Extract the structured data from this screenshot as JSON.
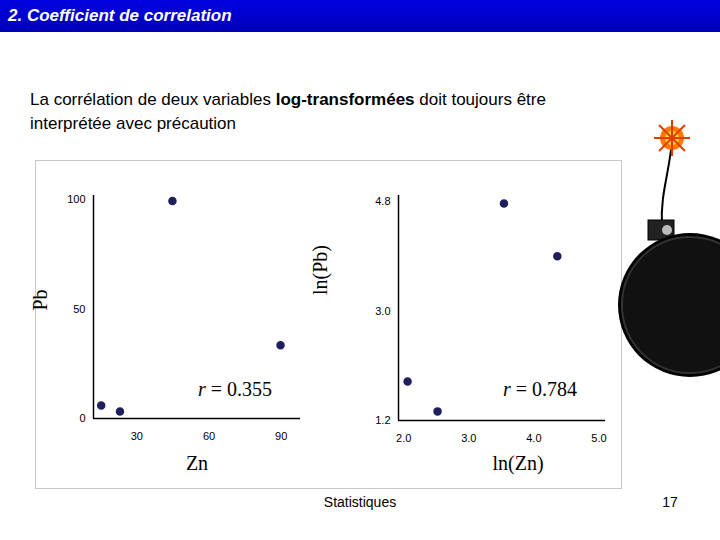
{
  "header": {
    "title": "2. Coefficient de correlation"
  },
  "intro": {
    "parts": [
      {
        "text": "La corrélation de deux variables ",
        "bold": false
      },
      {
        "text": "log-transformées",
        "bold": true
      },
      {
        "text": " doit toujours être interprétée avec précaution",
        "bold": false
      }
    ]
  },
  "chart_data": [
    {
      "type": "scatter",
      "x_label": "Zn",
      "y_label": "Pb",
      "x": [
        15.2,
        23,
        44.8,
        89.7
      ],
      "values": [
        6,
        3.2,
        99.5,
        33.5
      ],
      "xlim": [
        12,
        98
      ],
      "ylim": [
        0,
        102
      ],
      "xticks": [
        30,
        60,
        90
      ],
      "yticks": [
        0,
        50,
        100
      ],
      "annotation": "r = 0.355",
      "color": "#1f1f5f",
      "grid": false
    },
    {
      "type": "scatter",
      "x_label": "ln(Zn)",
      "y_label": "ln(Pb)",
      "x": [
        2.06,
        2.52,
        3.54,
        4.36
      ],
      "values": [
        1.84,
        1.35,
        4.77,
        3.9
      ],
      "xlim": [
        1.92,
        5.1
      ],
      "ylim": [
        1.2,
        4.9
      ],
      "xticks": [
        {
          "value": 2,
          "label": "2.0"
        },
        {
          "value": 3,
          "label": "3.0"
        },
        {
          "value": 4,
          "label": "4.0"
        },
        {
          "value": 5,
          "label": "5.0"
        }
      ],
      "yticks": [
        1.2,
        {
          "value": 3,
          "label": "3.0"
        },
        4.8
      ],
      "annotation": "r = 0.784",
      "color": "#1f1f5f",
      "grid": false
    }
  ],
  "footer": {
    "text": "Statistiques",
    "page": 17
  }
}
